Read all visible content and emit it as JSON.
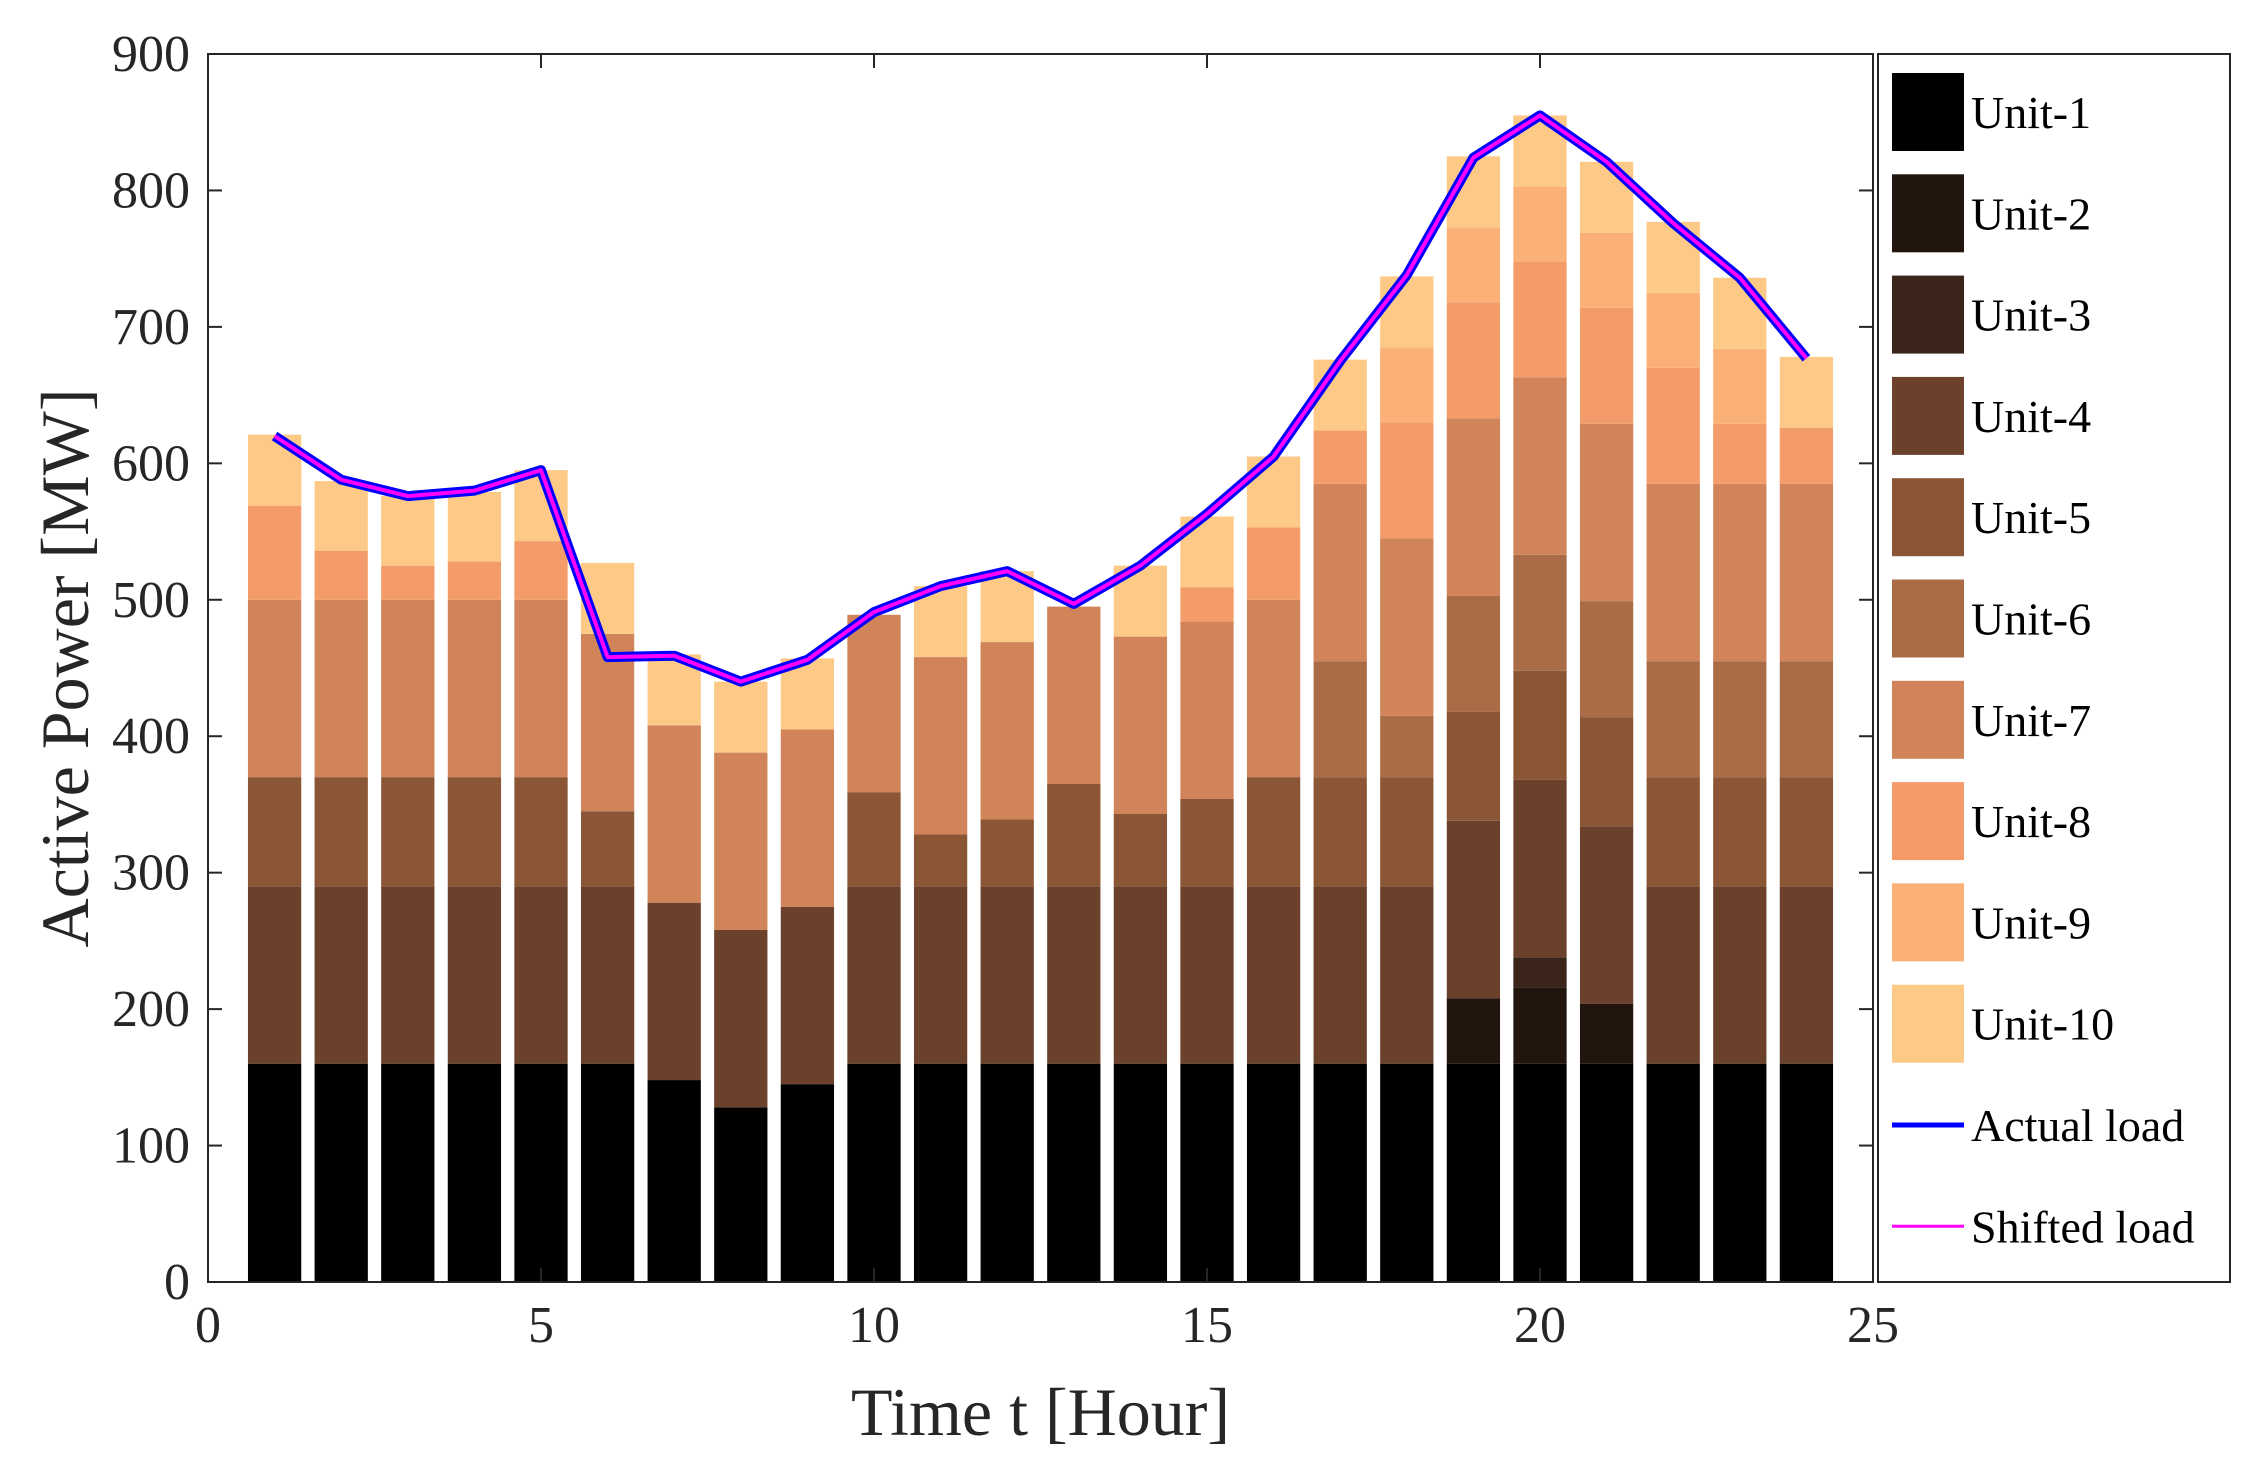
{
  "chart_data": {
    "type": "bar",
    "stacked": true,
    "xlabel": "Time t [Hour]",
    "ylabel": "Active Power [MW]",
    "xlim": [
      0,
      25
    ],
    "ylim": [
      0,
      900
    ],
    "xticks": [
      0,
      5,
      10,
      15,
      20,
      25
    ],
    "yticks": [
      0,
      100,
      200,
      300,
      400,
      500,
      600,
      700,
      800,
      900
    ],
    "grid": false,
    "legend_position": "right",
    "x": [
      1,
      2,
      3,
      4,
      5,
      6,
      7,
      8,
      9,
      10,
      11,
      12,
      13,
      14,
      15,
      16,
      17,
      18,
      19,
      20,
      21,
      22,
      23,
      24
    ],
    "series": [
      {
        "name": "Unit-1",
        "color": "#000000",
        "values": [
          160,
          160,
          160,
          160,
          160,
          160,
          148,
          128,
          145,
          160,
          160,
          160,
          160,
          160,
          160,
          160,
          160,
          160,
          160,
          160,
          160,
          160,
          160,
          160
        ]
      },
      {
        "name": "Unit-2",
        "color": "#21150e",
        "values": [
          0,
          0,
          0,
          0,
          0,
          0,
          0,
          0,
          0,
          0,
          0,
          0,
          0,
          0,
          0,
          0,
          0,
          0,
          48,
          56,
          44,
          0,
          0,
          0
        ]
      },
      {
        "name": "Unit-3",
        "color": "#3b251a",
        "values": [
          0,
          0,
          0,
          0,
          0,
          0,
          0,
          0,
          0,
          0,
          0,
          0,
          0,
          0,
          0,
          0,
          0,
          0,
          0,
          22,
          0,
          0,
          0,
          0
        ]
      },
      {
        "name": "Unit-4",
        "color": "#6b412b",
        "values": [
          130,
          130,
          130,
          130,
          130,
          130,
          130,
          130,
          130,
          130,
          130,
          130,
          130,
          130,
          130,
          130,
          130,
          130,
          130,
          130,
          130,
          130,
          130,
          130
        ]
      },
      {
        "name": "Unit-5",
        "color": "#8b5636",
        "values": [
          80,
          80,
          80,
          80,
          80,
          55,
          0,
          0,
          0,
          69,
          38,
          49,
          75,
          53,
          64,
          80,
          80,
          80,
          80,
          80,
          80,
          80,
          80,
          80
        ]
      },
      {
        "name": "Unit-6",
        "color": "#aa6b47",
        "values": [
          0,
          0,
          0,
          0,
          0,
          0,
          0,
          0,
          0,
          0,
          0,
          0,
          0,
          0,
          0,
          0,
          85,
          45,
          85,
          85,
          85,
          85,
          85,
          85
        ]
      },
      {
        "name": "Unit-7",
        "color": "#d1845a",
        "values": [
          130,
          130,
          130,
          130,
          130,
          130,
          130,
          130,
          130,
          130,
          130,
          130,
          130,
          130,
          130,
          130,
          130,
          130,
          130,
          130,
          130,
          130,
          130,
          130
        ]
      },
      {
        "name": "Unit-8",
        "color": "#f39c69",
        "values": [
          69,
          36,
          25,
          28,
          43,
          0,
          0,
          0,
          0,
          0,
          0,
          0,
          0,
          0,
          25,
          53,
          39,
          85,
          85,
          85,
          85,
          85,
          44,
          41
        ]
      },
      {
        "name": "Unit-9",
        "color": "#fbb075",
        "values": [
          0,
          0,
          0,
          0,
          0,
          0,
          0,
          0,
          0,
          0,
          0,
          0,
          0,
          0,
          0,
          0,
          0,
          55,
          55,
          55,
          55,
          55,
          55,
          0
        ]
      },
      {
        "name": "Unit-10",
        "color": "#fdc986",
        "values": [
          52,
          51,
          51,
          51,
          52,
          52,
          52,
          52,
          52,
          0,
          52,
          52,
          0,
          52,
          52,
          52,
          52,
          52,
          52,
          52,
          52,
          52,
          52,
          52
        ]
      }
    ],
    "lines": [
      {
        "name": "Actual load",
        "color": "#0000ff",
        "values": [
          620,
          588,
          576,
          580,
          595,
          458,
          459,
          440,
          456,
          491,
          510,
          521,
          497,
          525,
          563,
          605,
          675,
          738,
          824,
          855,
          821,
          776,
          736,
          677
        ]
      },
      {
        "name": "Shifted load",
        "color": "#ff00ff",
        "values": [
          620,
          588,
          576,
          580,
          595,
          458,
          459,
          440,
          456,
          491,
          510,
          521,
          497,
          525,
          563,
          605,
          675,
          738,
          824,
          855,
          821,
          776,
          736,
          677
        ]
      }
    ]
  }
}
